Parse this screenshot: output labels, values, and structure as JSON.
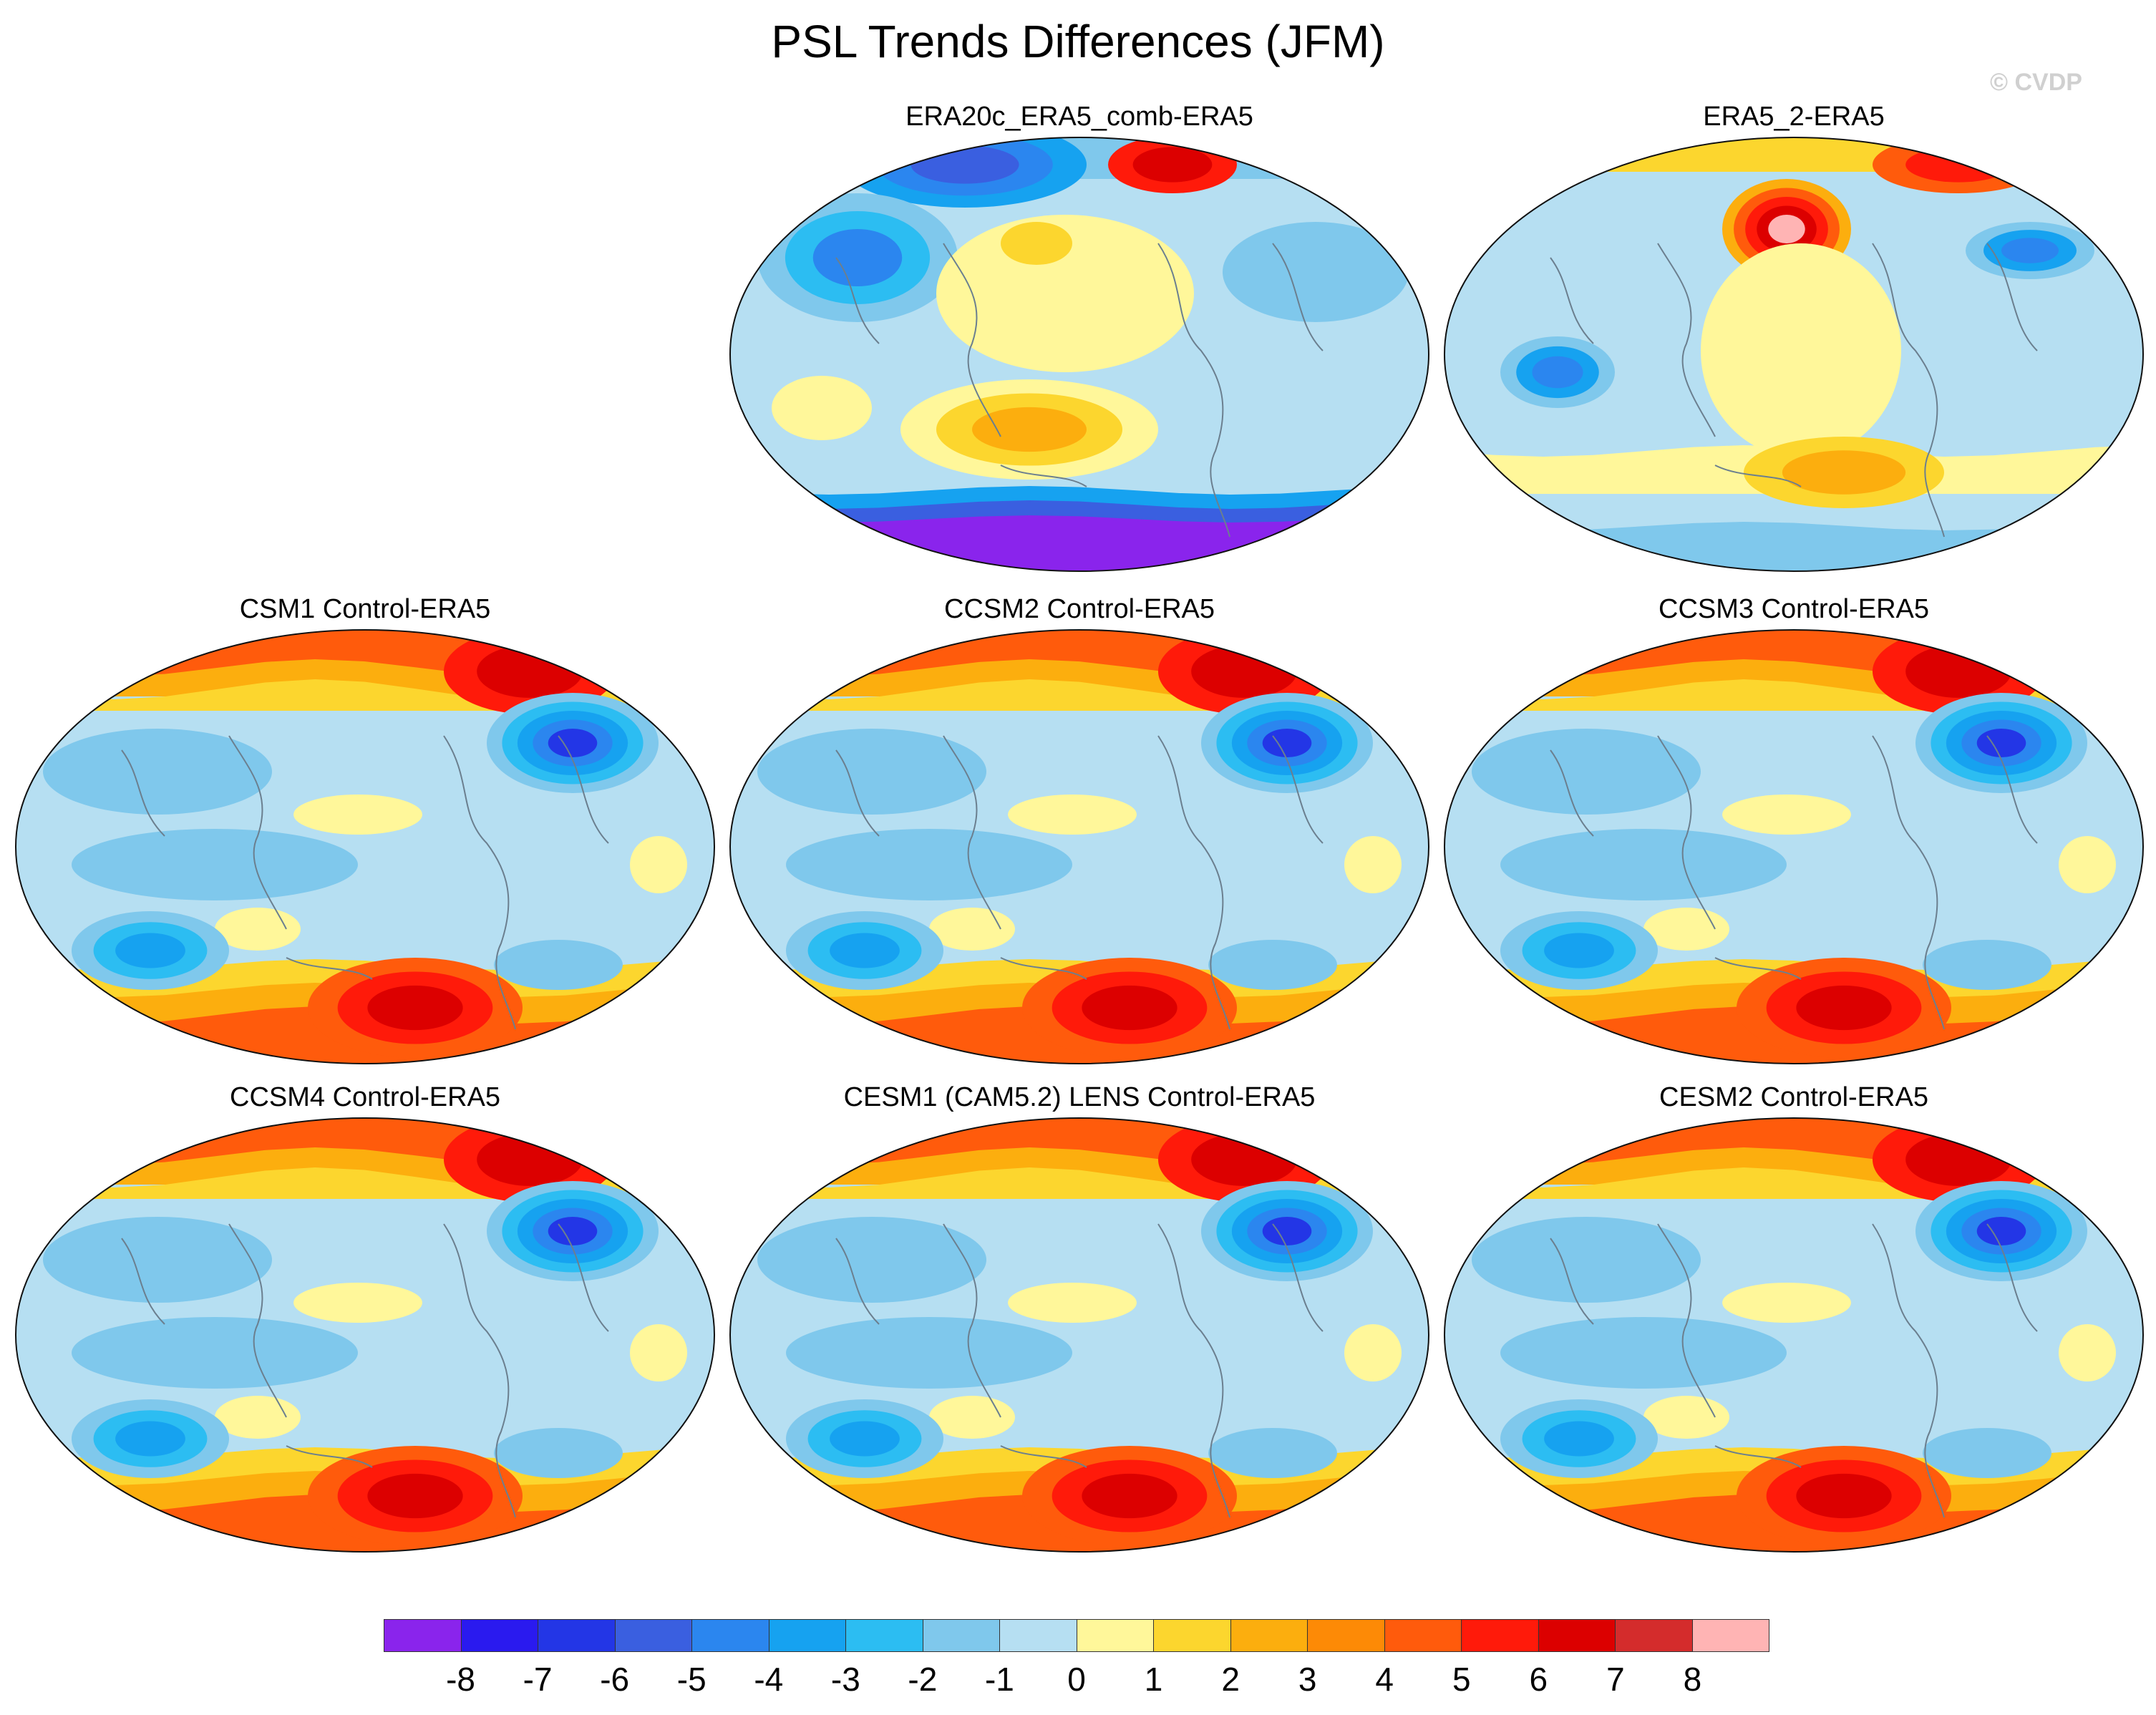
{
  "figure": {
    "title": "PSL Trends Differences (JFM)",
    "watermark": "© CVDP"
  },
  "panels": [
    {
      "key": "era20c",
      "title": "ERA20c_ERA5_comb-ERA5",
      "row": 0,
      "col": 1,
      "style": "reanalysis"
    },
    {
      "key": "era5_2",
      "title": "ERA5_2-ERA5",
      "row": 0,
      "col": 2,
      "style": "reanalysis2"
    },
    {
      "key": "csm1",
      "title": "CSM1 Control-ERA5",
      "row": 1,
      "col": 0,
      "style": "model"
    },
    {
      "key": "ccsm2",
      "title": "CCSM2 Control-ERA5",
      "row": 1,
      "col": 1,
      "style": "model"
    },
    {
      "key": "ccsm3",
      "title": "CCSM3 Control-ERA5",
      "row": 1,
      "col": 2,
      "style": "model"
    },
    {
      "key": "ccsm4",
      "title": "CCSM4 Control-ERA5",
      "row": 2,
      "col": 0,
      "style": "model"
    },
    {
      "key": "cesm1",
      "title": "CESM1 (CAM5.2) LENS Control-ERA5",
      "row": 2,
      "col": 1,
      "style": "model"
    },
    {
      "key": "cesm2",
      "title": "CESM2 Control-ERA5",
      "row": 2,
      "col": 2,
      "style": "model"
    }
  ],
  "colorbar": {
    "colors": [
      "#8a24ec",
      "#2a1aef",
      "#2336e6",
      "#3a5fe0",
      "#2b86ef",
      "#16a2f0",
      "#2cbdf2",
      "#7fc8ec",
      "#b6dff2",
      "#fff79a",
      "#fcd62e",
      "#fcae0e",
      "#fd8a06",
      "#ff5b0c",
      "#ff1a0a",
      "#dc0000",
      "#d42c2c",
      "#ffb4b4"
    ],
    "labels": [
      "-8",
      "-7",
      "-6",
      "-5",
      "-4",
      "-3",
      "-2",
      "-1",
      "0",
      "1",
      "2",
      "3",
      "4",
      "5",
      "6",
      "7",
      "8"
    ]
  }
}
